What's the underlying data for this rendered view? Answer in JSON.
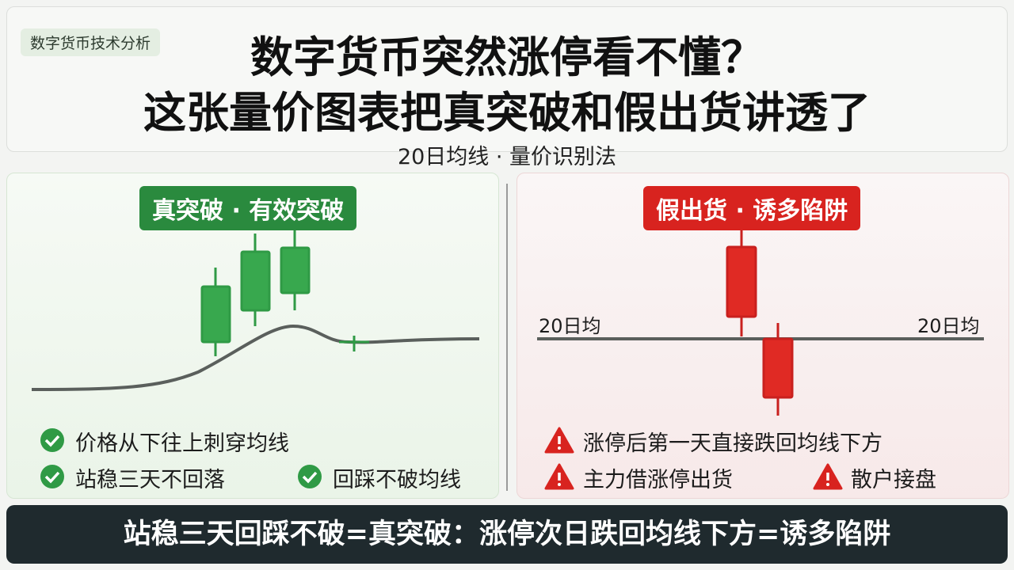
{
  "header": {
    "tag": "数字货币技术分析",
    "title_line1": "数字货币突然涨停看不懂？",
    "title_line2": "这张量价图表把真突破和假出货讲透了",
    "subtitle": "20日均线 · 量价识别法"
  },
  "left_panel": {
    "badge": "真突破 · 有效突破",
    "points": [
      "价格从下往上刺穿均线",
      "站稳三天不回落",
      "回踩不破均线"
    ]
  },
  "right_panel": {
    "badge": "假出货 · 诱多陷阱",
    "ma_label_left": "20日均",
    "ma_label_right": "20日均",
    "points": [
      "涨停后第一天直接跌回均线下方",
      "主力借涨停出货",
      "散户接盘"
    ]
  },
  "footer": {
    "banner": "站稳三天回踩不破=真突破：涨停次日跌回均线下方=诱多陷阱"
  }
}
